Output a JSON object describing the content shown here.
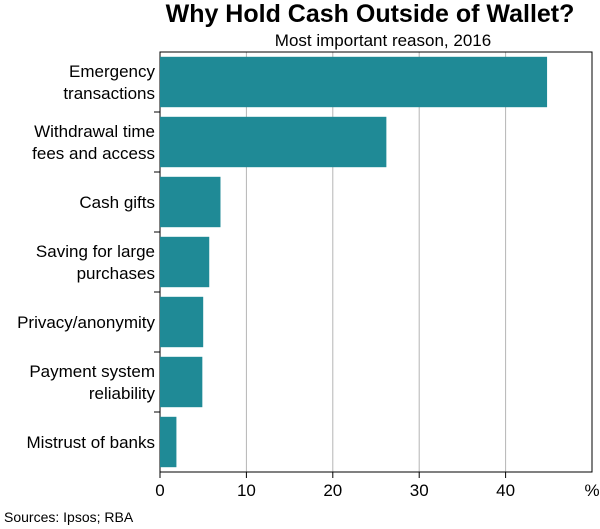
{
  "chart_data": {
    "type": "bar",
    "orientation": "horizontal",
    "title": "Why Hold Cash Outside of Wallet?",
    "subtitle": "Most important reason, 2016",
    "categories": [
      [
        "Emergency",
        "transactions"
      ],
      [
        "Withdrawal time",
        "fees and access"
      ],
      [
        "Cash gifts"
      ],
      [
        "Saving for large",
        "purchases"
      ],
      [
        "Privacy/anonymity"
      ],
      [
        "Payment system",
        "reliability"
      ],
      [
        "Mistrust of banks"
      ]
    ],
    "values": [
      44.8,
      26.2,
      7.0,
      5.7,
      5.0,
      4.9,
      1.9
    ],
    "xlim": [
      0,
      50
    ],
    "xticks": [
      "0",
      "10",
      "20",
      "30",
      "40"
    ],
    "xunit": "%",
    "grid": true,
    "bar_color": "#1f8a96",
    "source": "Sources: Ipsos; RBA"
  }
}
